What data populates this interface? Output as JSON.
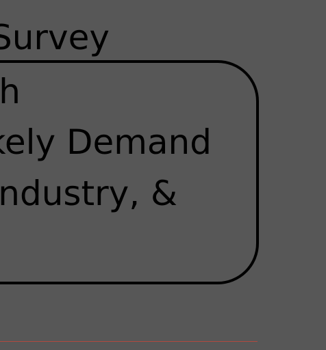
{
  "heading": "Survey",
  "card": {
    "lines": [
      "h",
      "kely Demand",
      "ndustry, &"
    ]
  },
  "colors": {
    "background": "#575757",
    "text": "#000000",
    "border": "#000000",
    "rule": "#b24a3f"
  }
}
